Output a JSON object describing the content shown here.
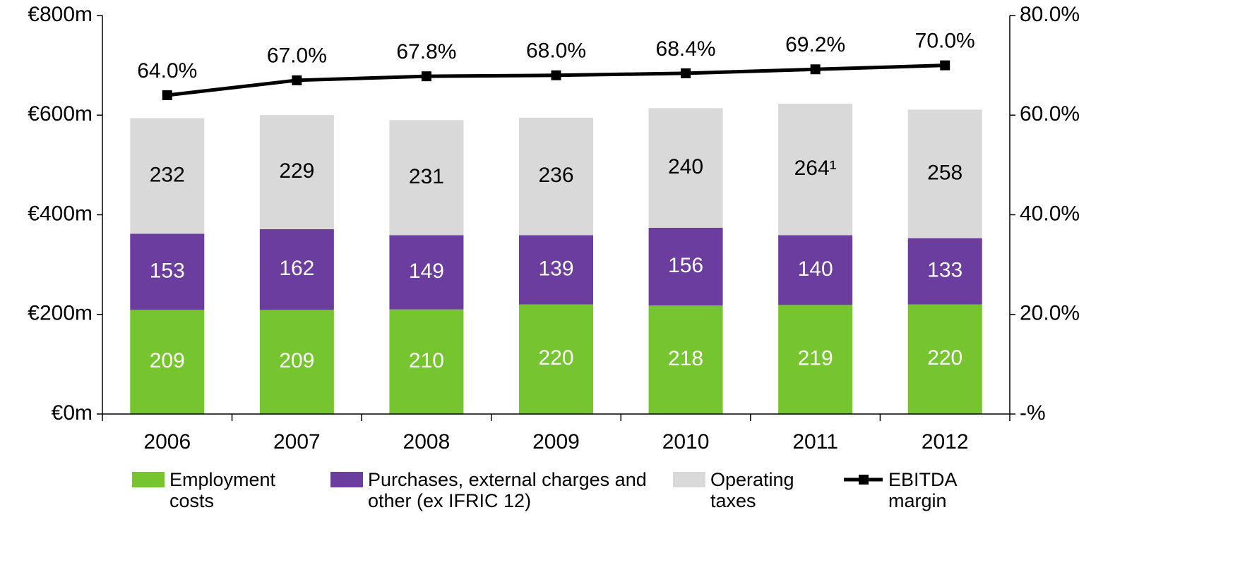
{
  "chart_data": {
    "type": "bar",
    "stacked": true,
    "categories": [
      "2006",
      "2007",
      "2008",
      "2009",
      "2010",
      "2011",
      "2012"
    ],
    "series": [
      {
        "name": "Employment costs",
        "color": "#77c431",
        "values": [
          209,
          209,
          210,
          220,
          218,
          219,
          220
        ]
      },
      {
        "name": "Purchases, external charges and other (ex IFRIC 12)",
        "color": "#6a3d9f",
        "values": [
          153,
          162,
          149,
          139,
          156,
          140,
          133
        ]
      },
      {
        "name": "Operating taxes",
        "color": "#d9d9d9",
        "values": [
          232,
          229,
          231,
          236,
          240,
          264,
          258
        ],
        "value_labels": [
          "232",
          "229",
          "231",
          "236",
          "240",
          "264¹",
          "258"
        ]
      },
      {
        "name": "EBITDA margin",
        "type": "line",
        "axis": "y2",
        "color": "#000000",
        "values": [
          64.0,
          67.0,
          67.8,
          68.0,
          68.4,
          69.2,
          70.0
        ],
        "value_labels": [
          "64.0%",
          "67.0%",
          "67.8%",
          "68.0%",
          "68.4%",
          "69.2%",
          "70.0%"
        ]
      }
    ],
    "ylim": [
      0,
      800
    ],
    "yticks": [
      {
        "value": 0,
        "label": "€0m"
      },
      {
        "value": 200,
        "label": "€200m"
      },
      {
        "value": 400,
        "label": "€400m"
      },
      {
        "value": 600,
        "label": "€600m"
      },
      {
        "value": 800,
        "label": "€800m"
      }
    ],
    "y2lim": [
      0,
      80
    ],
    "y2ticks": [
      {
        "value": 0,
        "label": "-%"
      },
      {
        "value": 20,
        "label": "20.0%"
      },
      {
        "value": 40,
        "label": "40.0%"
      },
      {
        "value": 60,
        "label": "60.0%"
      },
      {
        "value": 80,
        "label": "80.0%"
      }
    ],
    "grid": false,
    "legend": "bottom"
  }
}
